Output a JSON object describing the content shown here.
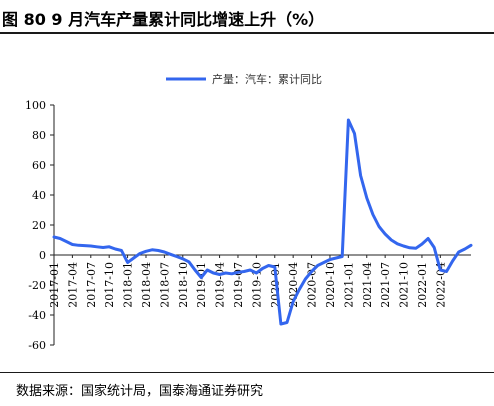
{
  "title": "图 80 9 月汽车产量累计同比增速上升（%）",
  "source": "数据来源：国家统计局，国泰海通证券研究",
  "colors": {
    "series": "#3366ee",
    "axis": "#222222"
  },
  "chart_data": {
    "type": "line",
    "title": "",
    "xlabel": "",
    "ylabel": "",
    "ylim": [
      -60,
      100
    ],
    "yticks": [
      100,
      80,
      60,
      40,
      20,
      0,
      -20,
      -40,
      -60
    ],
    "xticks": [
      "2017-01",
      "2017-04",
      "2017-07",
      "2017-10",
      "2018-01",
      "2018-04",
      "2018-07",
      "2018-10",
      "2019-01",
      "2019-04",
      "2019-07",
      "2019-10",
      "2020-01",
      "2020-04",
      "2020-07",
      "2020-10",
      "2021-01",
      "2021-04",
      "2021-07",
      "2021-10",
      "2022-01",
      "2022-04"
    ],
    "legend": "top-center",
    "grid": false,
    "series": [
      {
        "name": "产量：汽车：累计同比",
        "x": [
          "2017-01",
          "2017-02",
          "2017-03",
          "2017-04",
          "2017-05",
          "2017-06",
          "2017-07",
          "2017-08",
          "2017-09",
          "2017-10",
          "2017-11",
          "2017-12",
          "2018-01",
          "2018-02",
          "2018-03",
          "2018-04",
          "2018-05",
          "2018-06",
          "2018-07",
          "2018-08",
          "2018-09",
          "2018-10",
          "2018-11",
          "2018-12",
          "2019-01",
          "2019-02",
          "2019-03",
          "2019-04",
          "2019-05",
          "2019-06",
          "2019-07",
          "2019-08",
          "2019-09",
          "2019-10",
          "2019-11",
          "2019-12",
          "2020-01",
          "2020-02",
          "2020-03",
          "2020-04",
          "2020-05",
          "2020-06",
          "2020-07",
          "2020-08",
          "2020-09",
          "2020-10",
          "2020-11",
          "2020-12",
          "2021-01",
          "2021-02",
          "2021-03",
          "2021-04",
          "2021-05",
          "2021-06",
          "2021-07",
          "2021-08",
          "2021-09",
          "2021-10",
          "2021-11",
          "2021-12",
          "2022-01",
          "2022-02",
          "2022-03",
          "2022-04",
          "2022-05",
          "2022-06",
          "2022-07",
          "2022-08",
          "2022-09"
        ],
        "values": [
          12,
          11,
          9,
          7,
          6.5,
          6.3,
          6,
          5.5,
          5,
          5.5,
          4,
          3,
          -5,
          -2,
          1,
          2.5,
          3.5,
          3,
          2,
          0.5,
          -1,
          -2.5,
          -4.5,
          -10,
          -15,
          -10,
          -12,
          -13,
          -12,
          -12.5,
          -11.5,
          -11,
          -10,
          -12,
          -9,
          -7,
          -8,
          -46,
          -45,
          -31,
          -23,
          -16,
          -11,
          -7,
          -5,
          -3,
          -2,
          -1,
          90,
          81,
          53,
          38,
          27,
          19,
          14,
          10,
          7.5,
          6,
          4.8,
          4.5,
          7.3,
          11,
          5,
          -10,
          -11,
          -4,
          2,
          4,
          6.5
        ]
      }
    ]
  }
}
